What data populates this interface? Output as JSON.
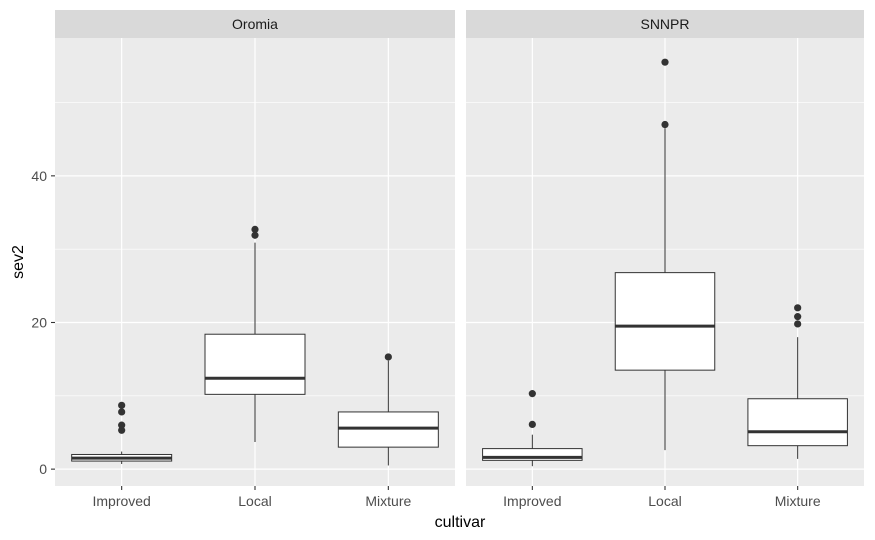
{
  "chart_data": {
    "type": "boxplot",
    "xlabel": "cultivar",
    "ylabel": "sev2",
    "categories": [
      "Improved",
      "Local",
      "Mixture"
    ],
    "yticks": [
      0,
      20,
      40
    ],
    "ylim": [
      -2.3,
      58.8
    ],
    "facets": [
      {
        "name": "Oromia",
        "boxes": [
          {
            "category": "Improved",
            "min": 0.7,
            "q1": 1.1,
            "median": 1.5,
            "q3": 2.0,
            "max": 2.4,
            "outliers": [
              5.3,
              6.0,
              7.8,
              8.7
            ]
          },
          {
            "category": "Local",
            "min": 3.7,
            "q1": 10.2,
            "median": 12.4,
            "q3": 18.4,
            "max": 30.9,
            "outliers": [
              31.9,
              32.7
            ]
          },
          {
            "category": "Mixture",
            "min": 0.5,
            "q1": 3.0,
            "median": 5.6,
            "q3": 7.8,
            "max": 14.8,
            "outliers": [
              15.3
            ]
          }
        ]
      },
      {
        "name": "SNNPR",
        "boxes": [
          {
            "category": "Improved",
            "min": 0.4,
            "q1": 1.2,
            "median": 1.6,
            "q3": 2.8,
            "max": 4.7,
            "outliers": [
              6.1,
              10.3
            ]
          },
          {
            "category": "Local",
            "min": 2.6,
            "q1": 13.5,
            "median": 19.5,
            "q3": 26.8,
            "max": 46.5,
            "outliers": [
              47.0,
              55.5
            ]
          },
          {
            "category": "Mixture",
            "min": 1.4,
            "q1": 3.2,
            "median": 5.1,
            "q3": 9.6,
            "max": 18.0,
            "outliers": [
              19.8,
              20.8,
              22.0
            ]
          }
        ]
      }
    ],
    "grid": true,
    "colors": {
      "panel": "#ebebeb",
      "strip": "#d9d9d9",
      "grid": "#ffffff",
      "box_fill": "#ffffff",
      "line": "#333333"
    }
  }
}
